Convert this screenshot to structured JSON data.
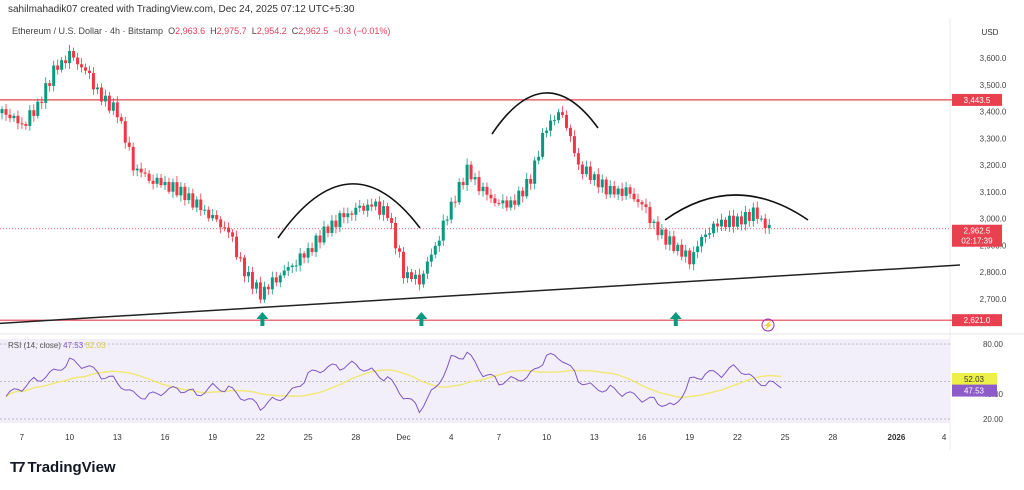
{
  "credit": "sahilmahadik07 created with TradingView.com, Dec 24, 2025 07:12 UTC+5:30",
  "legend": {
    "symbol": "Ethereum / U.S. Dollar · 4h · Bitstamp",
    "o_label": "O",
    "o": "2,963.6",
    "h_label": "H",
    "h": "2,975.7",
    "l_label": "L",
    "l": "2,954.2",
    "c_label": "C",
    "c": "2,962.5",
    "change": "−0.3 (−0.01%)"
  },
  "price_axis": {
    "currency": "USD",
    "ticks": [
      "3,600.0",
      "3,500.0",
      "3,400.0",
      "3,300.0",
      "3,200.0",
      "3,100.0",
      "3,000.0",
      "2,900.0",
      "2,800.0",
      "2,700.0"
    ],
    "tick_values": [
      3600,
      3500,
      3400,
      3300,
      3200,
      3100,
      3000,
      2900,
      2800,
      2700
    ]
  },
  "price_labels": {
    "resistance": "3,443.5",
    "last": "2,962.5",
    "countdown": "02:17:39",
    "support": "2,621.0"
  },
  "rsi": {
    "label": "RSI (14, close)",
    "value": "47.53",
    "ma_value": "52.03",
    "ticks": [
      "80.00",
      "40.00",
      "20.00"
    ],
    "tick_values": [
      80,
      40,
      20
    ]
  },
  "x_axis": {
    "ticks": [
      "7",
      "10",
      "13",
      "16",
      "19",
      "22",
      "25",
      "28",
      "Dec",
      "4",
      "7",
      "10",
      "13",
      "16",
      "19",
      "22",
      "25",
      "28",
      "2026",
      "4"
    ],
    "tick_days": [
      1,
      4,
      7,
      10,
      13,
      16,
      19,
      22,
      25,
      28,
      31,
      34,
      37,
      40,
      43,
      46,
      49,
      52,
      56,
      59
    ]
  },
  "logo": "TradingView",
  "colors": {
    "up": "#089981",
    "down": "#f23645",
    "rsi": "#7e57c2",
    "rsi_ma": "#f0e87a",
    "level": "#e8404f"
  },
  "chart_data": {
    "type": "candlestick",
    "start_date": "2025-11-06",
    "close": [
      3400,
      3350,
      3420,
      3550,
      3610,
      3550,
      3450,
      3400,
      3200,
      3150,
      3130,
      3100,
      3050,
      3000,
      2950,
      2800,
      2720,
      2780,
      2830,
      2880,
      2950,
      3000,
      3030,
      3050,
      3020,
      2800,
      2770,
      2900,
      3050,
      3180,
      3100,
      3050,
      3060,
      3150,
      3350,
      3400,
      3200,
      3150,
      3100,
      3100,
      3050,
      2950,
      2900,
      2850,
      2950,
      2990,
      2990,
      3020,
      2962.5
    ],
    "rsi": [
      38,
      45,
      52,
      58,
      66,
      62,
      55,
      50,
      40,
      38,
      42,
      44,
      40,
      46,
      44,
      36,
      30,
      36,
      42,
      55,
      60,
      62,
      64,
      58,
      52,
      38,
      28,
      45,
      68,
      72,
      56,
      50,
      52,
      55,
      70,
      68,
      52,
      45,
      44,
      40,
      36,
      34,
      30,
      50,
      56,
      56,
      62,
      52,
      47.53
    ],
    "levels": [
      3443.5,
      2621.0
    ],
    "trendline": {
      "from": [
        "2025-11-05",
        2607
      ],
      "to": [
        "2026-01-05",
        2827
      ]
    },
    "ylim": [
      2590,
      3700
    ],
    "rsi_ylim": [
      20,
      80
    ]
  }
}
